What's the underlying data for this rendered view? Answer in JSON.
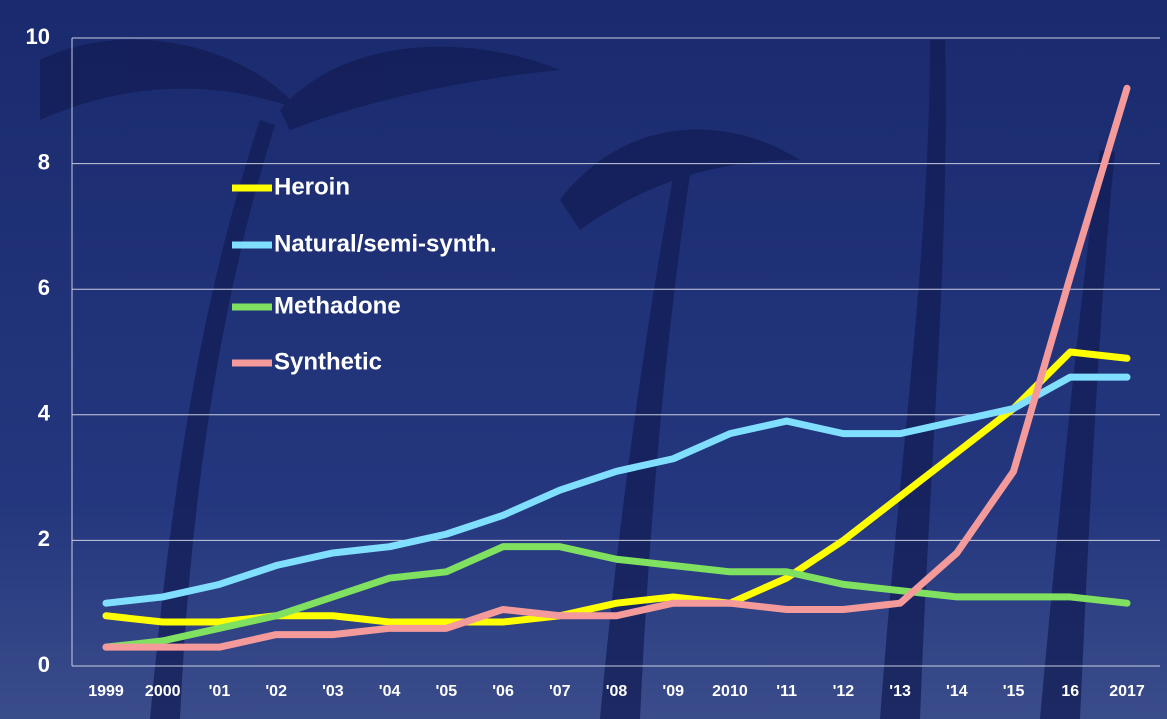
{
  "chart_data": {
    "type": "line",
    "categories": [
      "1999",
      "2000",
      "'01",
      "'02",
      "'03",
      "'04",
      "'05",
      "'06",
      "'07",
      "'08",
      "'09",
      "2010",
      "'11",
      "'12",
      "'13",
      "'14",
      "'15",
      "16",
      "2017"
    ],
    "series": [
      {
        "name": "Heroin",
        "color": "#ffff00",
        "values": [
          0.8,
          0.7,
          0.7,
          0.8,
          0.8,
          0.7,
          0.7,
          0.7,
          0.8,
          1.0,
          1.1,
          1.0,
          1.4,
          2.0,
          2.7,
          3.4,
          4.1,
          5.0,
          4.9
        ]
      },
      {
        "name": "Natural/semi-synth.",
        "color": "#80dfff",
        "values": [
          1.0,
          1.1,
          1.3,
          1.6,
          1.8,
          1.9,
          2.1,
          2.4,
          2.8,
          3.1,
          3.3,
          3.7,
          3.9,
          3.7,
          3.7,
          3.9,
          4.1,
          4.6,
          4.6
        ]
      },
      {
        "name": "Methadone",
        "color": "#80e060",
        "values": [
          0.3,
          0.4,
          0.6,
          0.8,
          1.1,
          1.4,
          1.5,
          1.9,
          1.9,
          1.7,
          1.6,
          1.5,
          1.5,
          1.3,
          1.2,
          1.1,
          1.1,
          1.1,
          1.0
        ]
      },
      {
        "name": "Synthetic",
        "color": "#f49a9a",
        "values": [
          0.3,
          0.3,
          0.3,
          0.5,
          0.5,
          0.6,
          0.6,
          0.9,
          0.8,
          0.8,
          1.0,
          1.0,
          0.9,
          0.9,
          1.0,
          1.8,
          3.1,
          6.2,
          9.2
        ]
      }
    ],
    "ylim": [
      0,
      10
    ],
    "yticks": [
      0,
      2,
      4,
      6,
      8,
      10
    ],
    "grid": true
  }
}
